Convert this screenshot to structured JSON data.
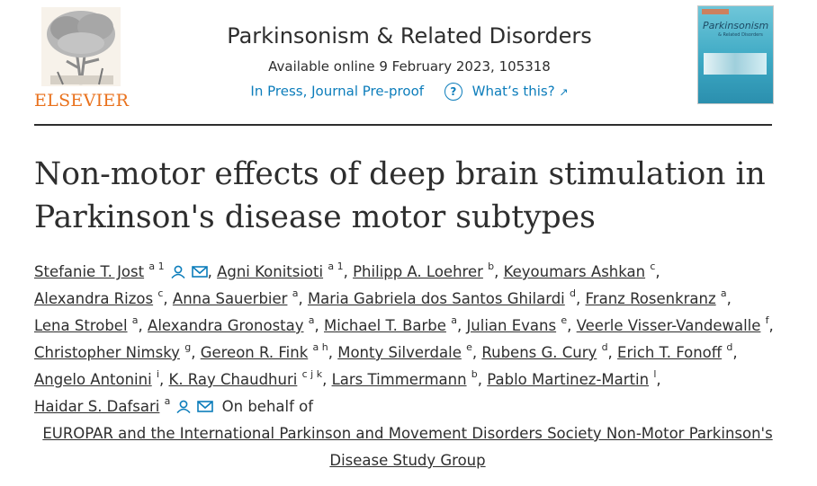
{
  "header": {
    "publisher": "ELSEVIER",
    "journal_title": "Parkinsonism & Related Disorders",
    "available": "Available online 9 February 2023, 105318",
    "status_link": "In Press, Journal Pre-proof",
    "help_label": "What’s this?",
    "cover_title": "Parkinsonism",
    "cover_subtitle": "& Related Disorders"
  },
  "article": {
    "title": "Non-motor effects of deep brain stimulation in Parkinson's disease motor subtypes"
  },
  "authors": [
    {
      "name": "Stefanie T. Jost",
      "sup": "a 1",
      "icons": true
    },
    {
      "name": "Agni Konitsioti",
      "sup": "a 1"
    },
    {
      "name": "Philipp A. Loehrer",
      "sup": "b"
    },
    {
      "name": "Keyoumars Ashkan",
      "sup": "c"
    },
    {
      "name": "Alexandra Rizos",
      "sup": "c"
    },
    {
      "name": "Anna Sauerbier",
      "sup": "a"
    },
    {
      "name": "Maria Gabriela dos Santos Ghilardi",
      "sup": "d"
    },
    {
      "name": "Franz Rosenkranz",
      "sup": "a"
    },
    {
      "name": "Lena Strobel",
      "sup": "a"
    },
    {
      "name": "Alexandra Gronostay",
      "sup": "a"
    },
    {
      "name": "Michael T. Barbe",
      "sup": "a"
    },
    {
      "name": "Julian Evans",
      "sup": "e"
    },
    {
      "name": "Veerle Visser-Vandewalle",
      "sup": "f"
    },
    {
      "name": "Christopher Nimsky",
      "sup": "g"
    },
    {
      "name": "Gereon R. Fink",
      "sup": "a h"
    },
    {
      "name": "Monty Silverdale",
      "sup": "e"
    },
    {
      "name": "Rubens G. Cury",
      "sup": "d"
    },
    {
      "name": "Erich T. Fonoff",
      "sup": "d"
    },
    {
      "name": "Angelo Antonini",
      "sup": "i"
    },
    {
      "name": "K. Ray Chaudhuri",
      "sup": "c j k"
    },
    {
      "name": "Lars Timmermann",
      "sup": "b"
    },
    {
      "name": "Pablo Martinez-Martin",
      "sup": "l"
    },
    {
      "name": "Haidar S. Dafsari",
      "sup": "a",
      "icons": true
    }
  ],
  "on_behalf": "On behalf of",
  "group": "EUROPAR and the International Parkinson and Movement Disorders Society Non-Motor Parkinson's Disease Study Group",
  "colors": {
    "accent": "#0c7dbb",
    "elsevier_orange": "#e9711c",
    "text": "#2e2e2e"
  },
  "icon_names": [
    "person-icon",
    "mail-icon",
    "help-icon",
    "external-link-icon"
  ]
}
